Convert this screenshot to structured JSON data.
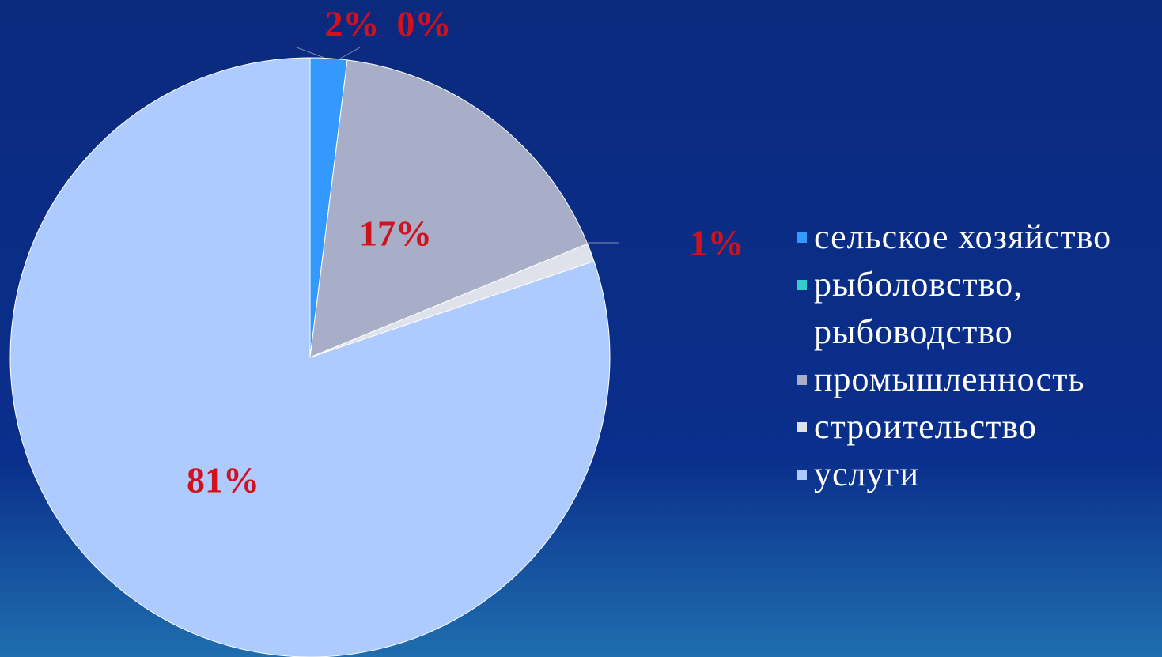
{
  "chart_data": {
    "type": "pie",
    "categories": [
      "сельское хозяйство",
      "рыболовство, рыбоводство",
      "промышленность",
      "строительство",
      "услуги"
    ],
    "values": [
      2,
      0,
      17,
      1,
      81
    ],
    "value_labels": [
      "2%",
      "0%",
      "17%",
      "1%",
      "81%"
    ],
    "colors": [
      "#3399ff",
      "#33cccc",
      "#a9aec8",
      "#dfe2ea",
      "#aecbff"
    ]
  }
}
